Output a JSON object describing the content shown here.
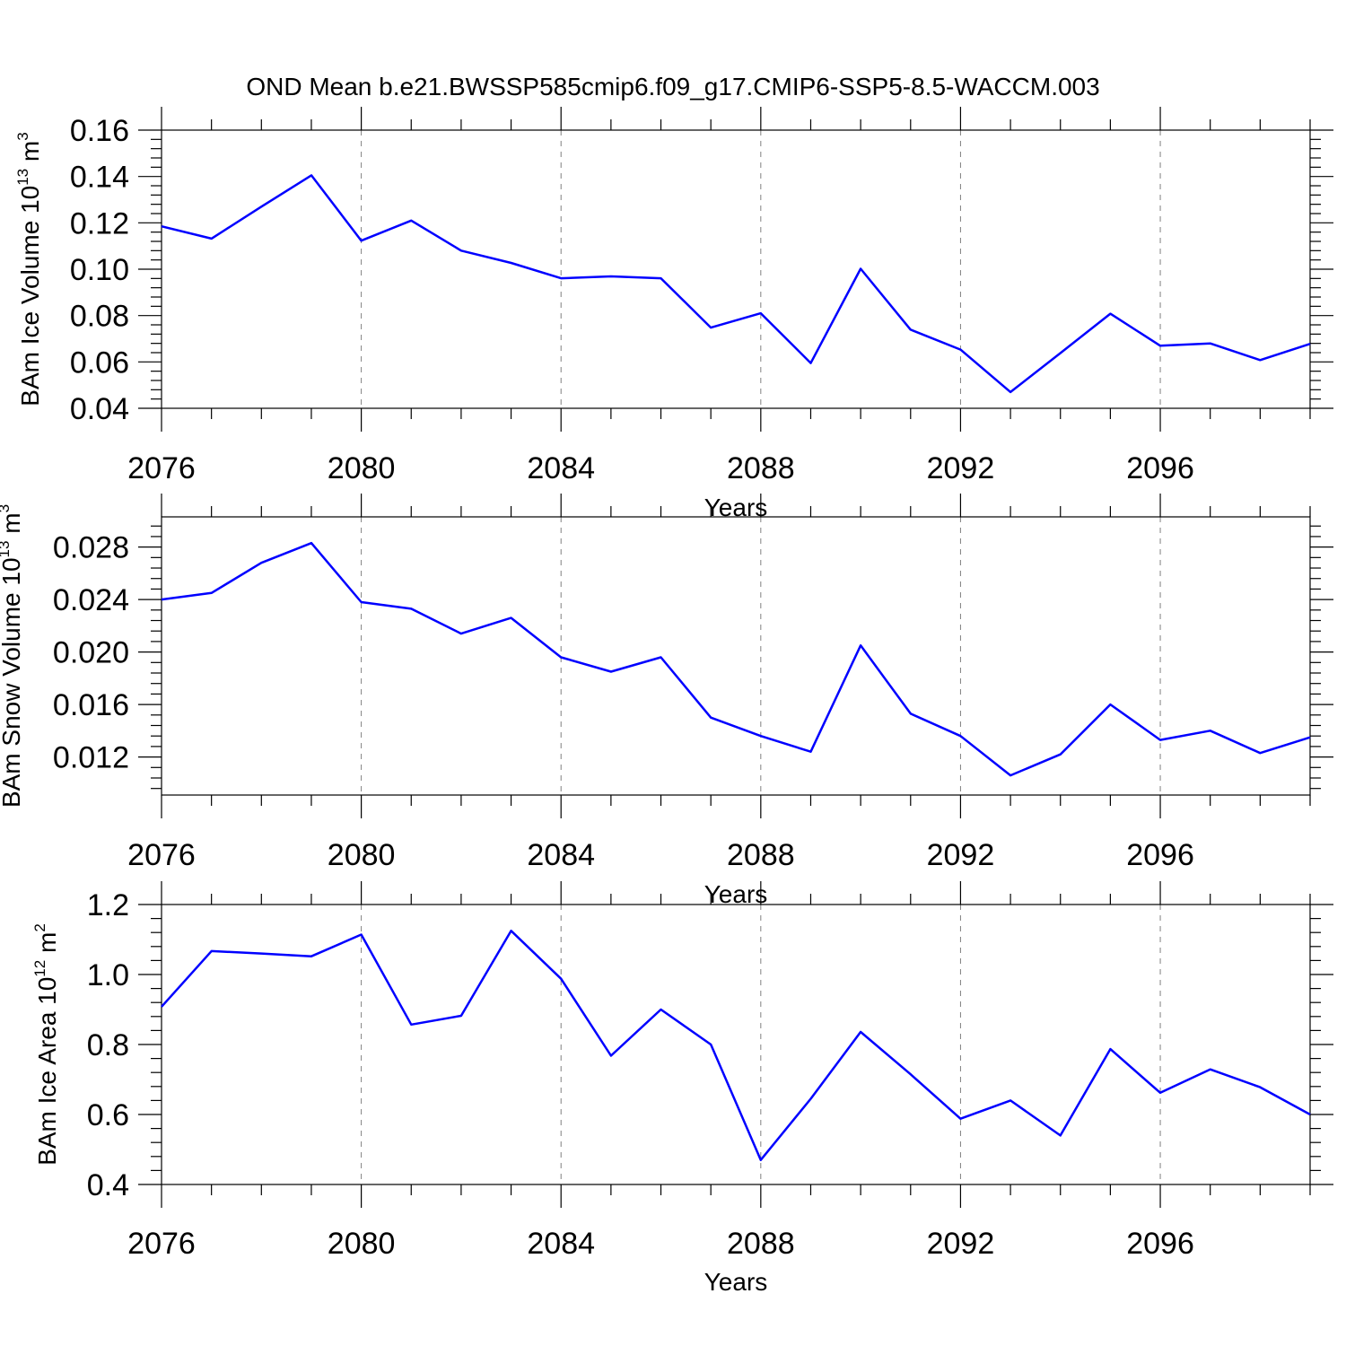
{
  "title": "OND Mean b.e21.BWSSP585cmip6.f09_g17.CMIP6-SSP5-8.5-WACCM.003",
  "colors": {
    "line": "#0000ff",
    "axis": "#000000",
    "grid": "#808080"
  },
  "chart_data": [
    {
      "type": "line",
      "ylabel": {
        "base": "BAm Ice Volume 10",
        "exp": "13",
        "unit": "m",
        "unit_exp": "3"
      },
      "xlabel": "Years",
      "xlim": [
        2076,
        2099
      ],
      "ylim": [
        0.04,
        0.16
      ],
      "xticks": [
        "2076",
        "2080",
        "2084",
        "2088",
        "2092",
        "2096"
      ],
      "yticks": [
        "0.04",
        "0.06",
        "0.08",
        "0.10",
        "0.12",
        "0.14",
        "0.16"
      ],
      "x": [
        2076,
        2077,
        2078,
        2079,
        2080,
        2081,
        2082,
        2083,
        2084,
        2085,
        2086,
        2087,
        2088,
        2089,
        2090,
        2091,
        2092,
        2093,
        2094,
        2095,
        2096,
        2097,
        2098,
        2099
      ],
      "series": [
        {
          "values": [
            0.1185,
            0.1132,
            0.127,
            0.1405,
            0.1123,
            0.121,
            0.108,
            0.1027,
            0.0961,
            0.0969,
            0.0961,
            0.0748,
            0.081,
            0.0595,
            0.1002,
            0.0739,
            0.0653,
            0.047,
            0.0638,
            0.0808,
            0.067,
            0.068,
            0.0608,
            0.0678
          ]
        }
      ],
      "grid": "vertical-dashed"
    },
    {
      "type": "line",
      "ylabel": {
        "base": "BAm Snow Volume 10",
        "exp": "13",
        "unit": "m",
        "unit_exp": "3"
      },
      "xlabel": "Years",
      "xlim": [
        2076,
        2099
      ],
      "ylim": [
        0.0091,
        0.0303
      ],
      "xticks": [
        "2076",
        "2080",
        "2084",
        "2088",
        "2092",
        "2096"
      ],
      "yticks": [
        "0.012",
        "0.016",
        "0.020",
        "0.024",
        "0.028"
      ],
      "x": [
        2076,
        2077,
        2078,
        2079,
        2080,
        2081,
        2082,
        2083,
        2084,
        2085,
        2086,
        2087,
        2088,
        2089,
        2090,
        2091,
        2092,
        2093,
        2094,
        2095,
        2096,
        2097,
        2098,
        2099
      ],
      "series": [
        {
          "values": [
            0.024,
            0.0245,
            0.0268,
            0.0283,
            0.0238,
            0.0233,
            0.0214,
            0.0226,
            0.0196,
            0.0185,
            0.0196,
            0.015,
            0.0136,
            0.0124,
            0.0205,
            0.0153,
            0.0136,
            0.0106,
            0.0122,
            0.016,
            0.0133,
            0.014,
            0.0123,
            0.0135
          ]
        }
      ],
      "grid": "vertical-dashed"
    },
    {
      "type": "line",
      "ylabel": {
        "base": "BAm Ice Area 10",
        "exp": "12",
        "unit": "m",
        "unit_exp": "2"
      },
      "xlabel": "Years",
      "xlim": [
        2076,
        2099
      ],
      "ylim": [
        0.4,
        1.2
      ],
      "xticks": [
        "2076",
        "2080",
        "2084",
        "2088",
        "2092",
        "2096"
      ],
      "yticks": [
        "0.4",
        "0.6",
        "0.8",
        "1.0",
        "1.2"
      ],
      "x": [
        2076,
        2077,
        2078,
        2079,
        2080,
        2081,
        2082,
        2083,
        2084,
        2085,
        2086,
        2087,
        2088,
        2089,
        2090,
        2091,
        2092,
        2093,
        2094,
        2095,
        2096,
        2097,
        2098,
        2099
      ],
      "series": [
        {
          "values": [
            0.908,
            1.067,
            1.06,
            1.052,
            1.114,
            0.857,
            0.882,
            1.125,
            0.988,
            0.768,
            0.9,
            0.8,
            0.47,
            0.645,
            0.836,
            0.715,
            0.588,
            0.64,
            0.54,
            0.787,
            0.662,
            0.729,
            0.678,
            0.6
          ]
        }
      ],
      "grid": "vertical-dashed"
    }
  ]
}
